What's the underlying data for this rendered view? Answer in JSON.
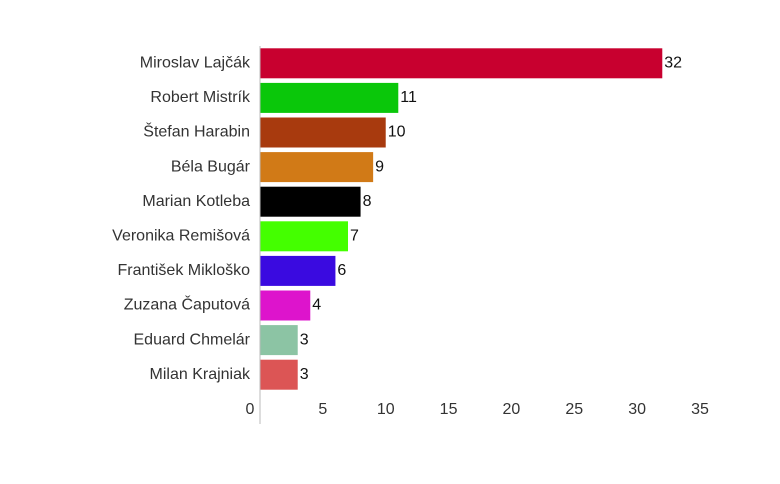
{
  "chart_data": {
    "type": "bar",
    "orientation": "horizontal",
    "categories": [
      "Miroslav Lajčák",
      "Robert Mistrík",
      "Štefan Harabin",
      "Béla Bugár",
      "Marian Kotleba",
      "Veronika Remišová",
      "František Mikloško",
      "Zuzana Čaputová",
      "Eduard Chmelár",
      "Milan Krajniak"
    ],
    "values": [
      32,
      11,
      10,
      9,
      8,
      7,
      6,
      4,
      3,
      3
    ],
    "colors": [
      "#c8002f",
      "#0ac70a",
      "#a83a0e",
      "#d17a17",
      "#000000",
      "#44ff00",
      "#3a0ae0",
      "#dd14cc",
      "#8cc4a4",
      "#dc5555"
    ],
    "xlim": [
      0,
      35
    ],
    "xticks": [
      0,
      5,
      10,
      15,
      20,
      25,
      30,
      35
    ]
  }
}
